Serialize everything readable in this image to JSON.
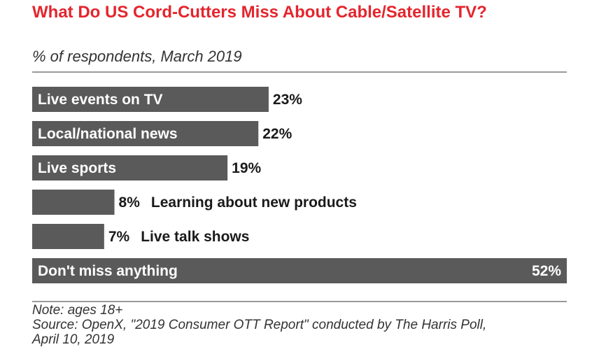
{
  "header": {
    "title": "What Do US Cord-Cutters Miss About Cable/Satellite TV?",
    "subtitle": "% of respondents, March 2019"
  },
  "footer": {
    "note": "Note: ages 18+",
    "source_line1": "Source: OpenX, \"2019 Consumer OTT Report\" conducted by The Harris Poll,",
    "source_line2": "April 10, 2019"
  },
  "colors": {
    "title": "#e4252d",
    "bar": "#5b5a5a",
    "bar_text": "#ffffff",
    "label_text": "#1a1a1a"
  },
  "chart_data": {
    "type": "bar",
    "orientation": "horizontal",
    "title": "What Do US Cord-Cutters Miss About Cable/Satellite TV?",
    "subtitle": "% of respondents, March 2019",
    "categories": [
      "Live events on TV",
      "Local/national news",
      "Live sports",
      "Learning about new products",
      "Live talk shows",
      "Don't miss anything"
    ],
    "values": [
      23,
      22,
      19,
      8,
      7,
      52
    ],
    "value_labels": [
      "23%",
      "22%",
      "19%",
      "8%",
      "7%",
      "52%"
    ],
    "unit": "%",
    "xlim": [
      0,
      52
    ],
    "grid": false,
    "legend": "none"
  }
}
